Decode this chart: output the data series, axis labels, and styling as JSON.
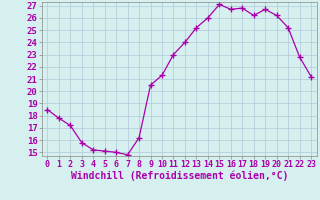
{
  "x": [
    0,
    1,
    2,
    3,
    4,
    5,
    6,
    7,
    8,
    9,
    10,
    11,
    12,
    13,
    14,
    15,
    16,
    17,
    18,
    19,
    20,
    21,
    22,
    23
  ],
  "y": [
    18.5,
    17.8,
    17.2,
    15.8,
    15.2,
    15.1,
    15.0,
    14.8,
    16.2,
    20.5,
    21.3,
    23.0,
    24.0,
    25.2,
    26.0,
    27.1,
    26.7,
    26.8,
    26.2,
    26.7,
    26.2,
    25.2,
    22.8,
    21.2
  ],
  "line_color": "#aa00aa",
  "marker": "+",
  "marker_size": 4,
  "xlabel": "Windchill (Refroidissement éolien,°C)",
  "xlim_min": -0.5,
  "xlim_max": 23.5,
  "ylim_min": 14.7,
  "ylim_max": 27.3,
  "yticks": [
    15,
    16,
    17,
    18,
    19,
    20,
    21,
    22,
    23,
    24,
    25,
    26,
    27
  ],
  "xtick_labels": [
    "0",
    "1",
    "2",
    "3",
    "4",
    "5",
    "6",
    "7",
    "8",
    "9",
    "10",
    "11",
    "12",
    "13",
    "14",
    "15",
    "16",
    "17",
    "18",
    "19",
    "20",
    "21",
    "22",
    "23"
  ],
  "background_color": "#d6f0f0",
  "grid_color": "#b0c8d8",
  "xlabel_fontsize": 7,
  "tick_fontsize": 6.5,
  "line_width": 0.9
}
